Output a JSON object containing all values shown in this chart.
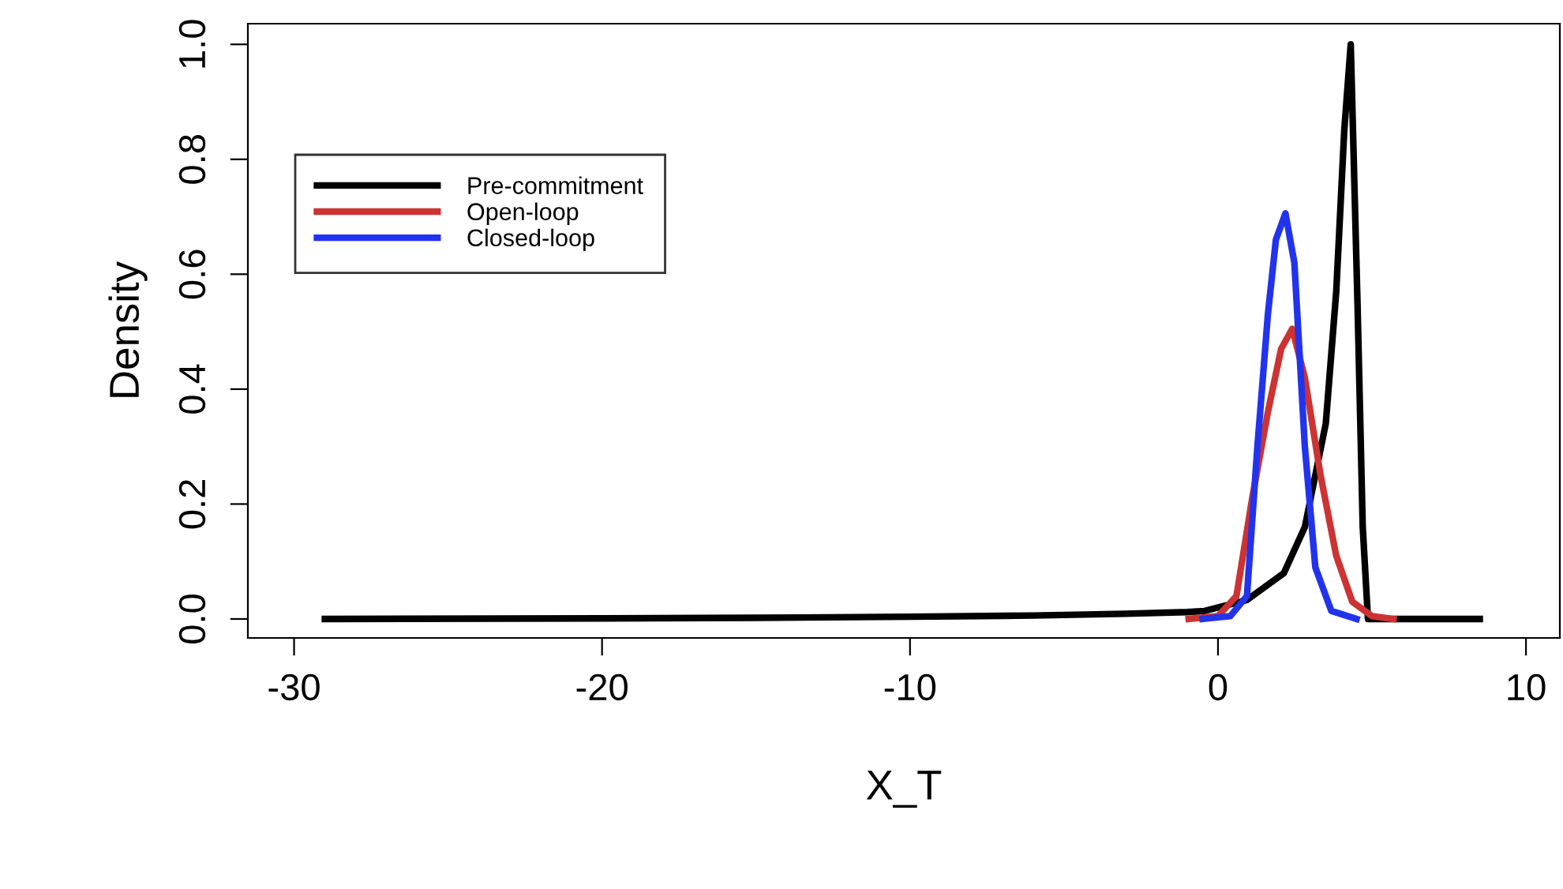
{
  "chart_data": {
    "type": "line",
    "xlabel": "X_T",
    "ylabel": "Density",
    "xlim": [
      -31.5,
      11.1
    ],
    "ylim": [
      -0.033,
      1.036
    ],
    "xticks": [
      -30,
      -20,
      -10,
      0,
      10
    ],
    "yticks": [
      {
        "value": 0,
        "label": "0.0"
      },
      {
        "value": 0.2,
        "label": "0.2"
      },
      {
        "value": 0.4,
        "label": "0.4"
      },
      {
        "value": 0.6,
        "label": "0.6"
      },
      {
        "value": 0.8,
        "label": "0.8"
      },
      {
        "value": 1,
        "label": "1.0"
      }
    ],
    "grid": false,
    "legend": "top left",
    "line_style": "solid",
    "marker": "none",
    "series": [
      {
        "name": "Pre-commitment",
        "color": "#000000",
        "x": [
          -29,
          -20,
          -15,
          -10,
          -6,
          -3,
          -1,
          -0.43,
          0.94,
          2.14,
          2.82,
          3.5,
          3.84,
          4.1,
          4.31,
          4.53,
          4.7,
          4.87,
          6,
          8.5
        ],
        "values": [
          0,
          0.001,
          0.002,
          0.004,
          0.006,
          0.009,
          0.012,
          0.014,
          0.033,
          0.08,
          0.16,
          0.34,
          0.57,
          0.85,
          1.0,
          0.55,
          0.16,
          0,
          0,
          0
        ]
      },
      {
        "name": "Open-loop",
        "color": "#cc3333",
        "x": [
          -0.95,
          0,
          0.6,
          1.11,
          1.62,
          2.05,
          2.41,
          2.82,
          3.33,
          3.84,
          4.36,
          5,
          5.7
        ],
        "values": [
          0,
          0.005,
          0.04,
          0.21,
          0.36,
          0.47,
          0.505,
          0.42,
          0.25,
          0.11,
          0.03,
          0.005,
          0
        ]
      },
      {
        "name": "Closed-loop",
        "color": "#2233ee",
        "x": [
          -0.5,
          0.4,
          0.94,
          1.28,
          1.62,
          1.88,
          2.19,
          2.48,
          2.82,
          3.16,
          3.68,
          4.5
        ],
        "values": [
          0,
          0.005,
          0.04,
          0.3,
          0.53,
          0.66,
          0.706,
          0.62,
          0.3,
          0.09,
          0.014,
          0
        ]
      }
    ]
  }
}
